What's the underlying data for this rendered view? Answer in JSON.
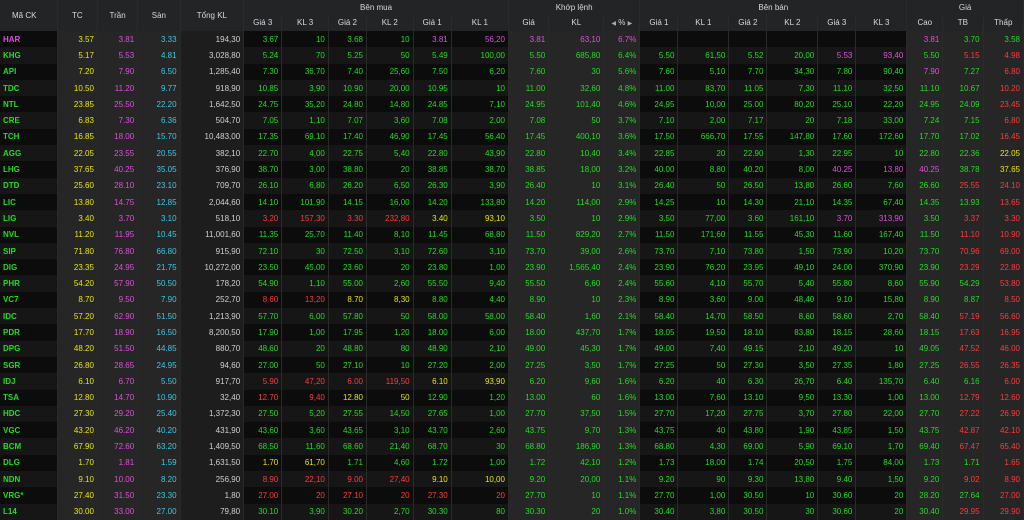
{
  "header": {
    "symbol": "Mã CK",
    "ref": "TC",
    "ceil": "Trần",
    "floor": "Sàn",
    "total_vol": "Tổng KL",
    "bid_group": "Bên mua",
    "match_group": "Khớp lệnh",
    "ask_group": "Bên bán",
    "price_group": "Giá",
    "bid_cols": [
      "Giá 3",
      "KL 3",
      "Giá 2",
      "KL 2",
      "Giá 1",
      "KL 1"
    ],
    "match_cols": [
      "Giá",
      "KL",
      "%"
    ],
    "ask_cols": [
      "Giá 1",
      "KL 1",
      "Giá 2",
      "KL 2",
      "Giá 3",
      "KL 3"
    ],
    "price_cols": [
      "Cao",
      "TB",
      "Thấp"
    ]
  },
  "colors": {
    "up": "#22dd22",
    "down": "#ff3a3a",
    "ref": "#e6e600",
    "ceil": "#e04ee0",
    "floor": "#38c8e8"
  },
  "rows": [
    {
      "sym": "HAR",
      "tc": "3.57",
      "tran": "3.81",
      "san": "3.33",
      "vol": "194,30",
      "b3": "3.67",
      "bk3": "10",
      "b2": "3.68",
      "bk2": "10",
      "b1": "3.81",
      "bk1": "56,20",
      "m": "3.81",
      "mk": "63,10",
      "pct": "6.7%",
      "a1": "",
      "ak1": "",
      "a2": "",
      "ak2": "",
      "a3": "",
      "ak3": "",
      "hi": "3.81",
      "avg": "3.70",
      "lo": "3.58"
    },
    {
      "sym": "KHG",
      "tc": "5.17",
      "tran": "5.53",
      "san": "4.81",
      "vol": "3,028,80",
      "b3": "5.24",
      "bk3": "70",
      "b2": "5.25",
      "bk2": "50",
      "b1": "5.49",
      "bk1": "100,00",
      "m": "5.50",
      "mk": "685,80",
      "pct": "6.4%",
      "a1": "5.50",
      "ak1": "61,50",
      "a2": "5.52",
      "ak2": "20,00",
      "a3": "5.53",
      "ak3": "93,40",
      "hi": "5.50",
      "avg": "5.15",
      "lo": "4.98"
    },
    {
      "sym": "API",
      "tc": "7.20",
      "tran": "7.90",
      "san": "6.50",
      "vol": "1,285,40",
      "b3": "7.30",
      "bk3": "36,70",
      "b2": "7.40",
      "bk2": "25,60",
      "b1": "7.50",
      "bk1": "6,20",
      "m": "7.60",
      "mk": "30",
      "pct": "5.6%",
      "a1": "7.60",
      "ak1": "5,10",
      "a2": "7.70",
      "ak2": "34,30",
      "a3": "7.80",
      "ak3": "90,40",
      "hi": "7.90",
      "avg": "7.27",
      "lo": "6.80"
    },
    {
      "sym": "TDC",
      "tc": "10.50",
      "tran": "11.20",
      "san": "9.77",
      "vol": "918,90",
      "b3": "10.85",
      "bk3": "3,90",
      "b2": "10.90",
      "bk2": "20,00",
      "b1": "10.95",
      "bk1": "10",
      "m": "11.00",
      "mk": "32,60",
      "pct": "4.8%",
      "a1": "11.00",
      "ak1": "83,70",
      "a2": "11.05",
      "ak2": "7,30",
      "a3": "11.10",
      "ak3": "32,50",
      "hi": "11.10",
      "avg": "10.67",
      "lo": "10.20"
    },
    {
      "sym": "NTL",
      "tc": "23.85",
      "tran": "25.50",
      "san": "22.20",
      "vol": "1,642,50",
      "b3": "24.75",
      "bk3": "35,20",
      "b2": "24.80",
      "bk2": "14,80",
      "b1": "24.85",
      "bk1": "7,10",
      "m": "24.95",
      "mk": "101,40",
      "pct": "4.6%",
      "a1": "24.95",
      "ak1": "10,00",
      "a2": "25.00",
      "ak2": "80,20",
      "a3": "25.10",
      "ak3": "22,20",
      "hi": "24.95",
      "avg": "24.09",
      "lo": "23.45"
    },
    {
      "sym": "CRE",
      "tc": "6.83",
      "tran": "7.30",
      "san": "6.36",
      "vol": "504,70",
      "b3": "7.05",
      "bk3": "1,10",
      "b2": "7.07",
      "bk2": "3,60",
      "b1": "7.08",
      "bk1": "2,00",
      "m": "7.08",
      "mk": "50",
      "pct": "3.7%",
      "a1": "7.10",
      "ak1": "2,00",
      "a2": "7.17",
      "ak2": "20",
      "a3": "7.18",
      "ak3": "33,00",
      "hi": "7.24",
      "avg": "7.15",
      "lo": "6.80"
    },
    {
      "sym": "TCH",
      "tc": "16.85",
      "tran": "18.00",
      "san": "15.70",
      "vol": "10,483,00",
      "b3": "17.35",
      "bk3": "69,10",
      "b2": "17.40",
      "bk2": "46,90",
      "b1": "17.45",
      "bk1": "56,40",
      "m": "17.45",
      "mk": "400,10",
      "pct": "3.6%",
      "a1": "17.50",
      "ak1": "666,70",
      "a2": "17.55",
      "ak2": "147,80",
      "a3": "17.60",
      "ak3": "172,60",
      "hi": "17.70",
      "avg": "17.02",
      "lo": "16.45"
    },
    {
      "sym": "AGG",
      "tc": "22.05",
      "tran": "23.55",
      "san": "20.55",
      "vol": "382,10",
      "b3": "22.70",
      "bk3": "4,00",
      "b2": "22.75",
      "bk2": "5,40",
      "b1": "22.80",
      "bk1": "43,90",
      "m": "22.80",
      "mk": "10,40",
      "pct": "3.4%",
      "a1": "22.85",
      "ak1": "20",
      "a2": "22.90",
      "ak2": "1,30",
      "a3": "22.95",
      "ak3": "10",
      "hi": "22.80",
      "avg": "22.36",
      "lo": "22.05"
    },
    {
      "sym": "LHG",
      "tc": "37.65",
      "tran": "40.25",
      "san": "35.05",
      "vol": "376,90",
      "b3": "38.70",
      "bk3": "3,00",
      "b2": "38.80",
      "bk2": "20",
      "b1": "38.85",
      "bk1": "38,70",
      "m": "38.85",
      "mk": "18,00",
      "pct": "3.2%",
      "a1": "40.00",
      "ak1": "8,80",
      "a2": "40.20",
      "ak2": "8,00",
      "a3": "40.25",
      "ak3": "13,80",
      "hi": "40.25",
      "avg": "38.78",
      "lo": "37.65"
    },
    {
      "sym": "DTD",
      "tc": "25.60",
      "tran": "28.10",
      "san": "23.10",
      "vol": "709,70",
      "b3": "26.10",
      "bk3": "6,80",
      "b2": "26.20",
      "bk2": "6,50",
      "b1": "26.30",
      "bk1": "3,90",
      "m": "26.40",
      "mk": "10",
      "pct": "3.1%",
      "a1": "26.40",
      "ak1": "50",
      "a2": "26.50",
      "ak2": "13,80",
      "a3": "26.60",
      "ak3": "7,60",
      "hi": "26.60",
      "avg": "25.55",
      "lo": "24.10"
    },
    {
      "sym": "LIC",
      "tc": "13.80",
      "tran": "14.75",
      "san": "12.85",
      "vol": "2,044,60",
      "b3": "14.10",
      "bk3": "101,90",
      "b2": "14.15",
      "bk2": "16,00",
      "b1": "14.20",
      "bk1": "133,80",
      "m": "14.20",
      "mk": "114,00",
      "pct": "2.9%",
      "a1": "14.25",
      "ak1": "10",
      "a2": "14.30",
      "ak2": "21,10",
      "a3": "14.35",
      "ak3": "67,40",
      "hi": "14.35",
      "avg": "13.93",
      "lo": "13.65"
    },
    {
      "sym": "LIG",
      "tc": "3.40",
      "tran": "3.70",
      "san": "3.10",
      "vol": "518,10",
      "b3": "3.20",
      "bk3": "157,30",
      "b2": "3.30",
      "bk2": "232,80",
      "b1": "3.40",
      "bk1": "93,10",
      "m": "3.50",
      "mk": "10",
      "pct": "2.9%",
      "a1": "3.50",
      "ak1": "77,00",
      "a2": "3.60",
      "ak2": "161,10",
      "a3": "3.70",
      "ak3": "313,90",
      "hi": "3.50",
      "avg": "3.37",
      "lo": "3.30"
    },
    {
      "sym": "NVL",
      "tc": "11.20",
      "tran": "11.95",
      "san": "10.45",
      "vol": "11,001,60",
      "b3": "11.35",
      "bk3": "25,70",
      "b2": "11.40",
      "bk2": "8,10",
      "b1": "11.45",
      "bk1": "68,80",
      "m": "11.50",
      "mk": "829,20",
      "pct": "2.7%",
      "a1": "11.50",
      "ak1": "171,60",
      "a2": "11.55",
      "ak2": "45,30",
      "a3": "11.60",
      "ak3": "167,40",
      "hi": "11.50",
      "avg": "11.10",
      "lo": "10.90"
    },
    {
      "sym": "SIP",
      "tc": "71.80",
      "tran": "76.80",
      "san": "66.80",
      "vol": "915,90",
      "b3": "72.10",
      "bk3": "30",
      "b2": "72.50",
      "bk2": "3,10",
      "b1": "72.60",
      "bk1": "3,10",
      "m": "73.70",
      "mk": "39,00",
      "pct": "2.6%",
      "a1": "73.70",
      "ak1": "7,10",
      "a2": "73.80",
      "ak2": "1,50",
      "a3": "73.90",
      "ak3": "10,20",
      "hi": "73.70",
      "avg": "70.96",
      "lo": "69.00"
    },
    {
      "sym": "DIG",
      "tc": "23.35",
      "tran": "24.95",
      "san": "21.75",
      "vol": "10,272,00",
      "b3": "23.50",
      "bk3": "45,00",
      "b2": "23.60",
      "bk2": "20",
      "b1": "23.80",
      "bk1": "1,00",
      "m": "23.90",
      "mk": "1,565,40",
      "pct": "2.4%",
      "a1": "23.90",
      "ak1": "76,20",
      "a2": "23.95",
      "ak2": "49,10",
      "a3": "24.00",
      "ak3": "370,90",
      "hi": "23.90",
      "avg": "23.29",
      "lo": "22.80"
    },
    {
      "sym": "PHR",
      "tc": "54.20",
      "tran": "57.90",
      "san": "50.50",
      "vol": "178,20",
      "b3": "54.90",
      "bk3": "1,10",
      "b2": "55.00",
      "bk2": "2,60",
      "b1": "55.50",
      "bk1": "9,40",
      "m": "55.50",
      "mk": "6,60",
      "pct": "2.4%",
      "a1": "55.60",
      "ak1": "4,10",
      "a2": "55.70",
      "ak2": "5,40",
      "a3": "55.80",
      "ak3": "8,60",
      "hi": "55.90",
      "avg": "54.29",
      "lo": "53.80"
    },
    {
      "sym": "VC7",
      "tc": "8.70",
      "tran": "9.50",
      "san": "7.90",
      "vol": "252,70",
      "b3": "8.60",
      "bk3": "13,20",
      "b2": "8.70",
      "bk2": "8,30",
      "b1": "8.80",
      "bk1": "4,40",
      "m": "8.90",
      "mk": "10",
      "pct": "2.3%",
      "a1": "8.90",
      "ak1": "3,60",
      "a2": "9.00",
      "ak2": "48,40",
      "a3": "9.10",
      "ak3": "15,80",
      "hi": "8.90",
      "avg": "8.87",
      "lo": "8.50"
    },
    {
      "sym": "IDC",
      "tc": "57.20",
      "tran": "62.90",
      "san": "51.50",
      "vol": "1,213,90",
      "b3": "57.70",
      "bk3": "6,00",
      "b2": "57.80",
      "bk2": "50",
      "b1": "58.00",
      "bk1": "58,00",
      "m": "58.40",
      "mk": "1,60",
      "pct": "2.1%",
      "a1": "58.40",
      "ak1": "14,70",
      "a2": "58.50",
      "ak2": "8,60",
      "a3": "58.60",
      "ak3": "2,70",
      "hi": "58.40",
      "avg": "57.19",
      "lo": "56.60"
    },
    {
      "sym": "PDR",
      "tc": "17.70",
      "tran": "18.90",
      "san": "16.50",
      "vol": "8,200,50",
      "b3": "17.90",
      "bk3": "1,00",
      "b2": "17.95",
      "bk2": "1,20",
      "b1": "18.00",
      "bk1": "6,00",
      "m": "18.00",
      "mk": "437,70",
      "pct": "1.7%",
      "a1": "18.05",
      "ak1": "19,50",
      "a2": "18.10",
      "ak2": "83,80",
      "a3": "18.15",
      "ak3": "28,60",
      "hi": "18.15",
      "avg": "17.63",
      "lo": "16.95"
    },
    {
      "sym": "DPG",
      "tc": "48.20",
      "tran": "51.50",
      "san": "44.85",
      "vol": "880,70",
      "b3": "48.60",
      "bk3": "20",
      "b2": "48.80",
      "bk2": "80",
      "b1": "48.90",
      "bk1": "2,10",
      "m": "49.00",
      "mk": "45,30",
      "pct": "1.7%",
      "a1": "49.00",
      "ak1": "7,40",
      "a2": "49.15",
      "ak2": "2,10",
      "a3": "49.20",
      "ak3": "10",
      "hi": "49.05",
      "avg": "47.52",
      "lo": "46.00"
    },
    {
      "sym": "SGR",
      "tc": "26.80",
      "tran": "28.65",
      "san": "24.95",
      "vol": "94,60",
      "b3": "27.00",
      "bk3": "50",
      "b2": "27.10",
      "bk2": "10",
      "b1": "27.20",
      "bk1": "2,00",
      "m": "27.25",
      "mk": "3,50",
      "pct": "1.7%",
      "a1": "27.25",
      "ak1": "50",
      "a2": "27.30",
      "ak2": "3,50",
      "a3": "27.35",
      "ak3": "1,80",
      "hi": "27.25",
      "avg": "26.55",
      "lo": "26.35"
    },
    {
      "sym": "IDJ",
      "tc": "6.10",
      "tran": "6.70",
      "san": "5.50",
      "vol": "917,70",
      "b3": "5.90",
      "bk3": "47,20",
      "b2": "6.00",
      "bk2": "119,50",
      "b1": "6.10",
      "bk1": "93,90",
      "m": "6.20",
      "mk": "9,60",
      "pct": "1.6%",
      "a1": "6.20",
      "ak1": "40",
      "a2": "6.30",
      "ak2": "26,70",
      "a3": "6.40",
      "ak3": "135,70",
      "hi": "6.40",
      "avg": "6.16",
      "lo": "6.00"
    },
    {
      "sym": "TSA",
      "tc": "12.80",
      "tran": "14.70",
      "san": "10.90",
      "vol": "32,40",
      "b3": "12.70",
      "bk3": "9,40",
      "b2": "12.80",
      "bk2": "50",
      "b1": "12.90",
      "bk1": "1,20",
      "m": "13.00",
      "mk": "60",
      "pct": "1.6%",
      "a1": "13.00",
      "ak1": "7,60",
      "a2": "13.10",
      "ak2": "9,50",
      "a3": "13.30",
      "ak3": "1,00",
      "hi": "13.00",
      "avg": "12.79",
      "lo": "12.60"
    },
    {
      "sym": "HDC",
      "tc": "27.30",
      "tran": "29.20",
      "san": "25.40",
      "vol": "1,372,30",
      "b3": "27.50",
      "bk3": "5,20",
      "b2": "27.55",
      "bk2": "14,50",
      "b1": "27.65",
      "bk1": "1,00",
      "m": "27.70",
      "mk": "37,50",
      "pct": "1.5%",
      "a1": "27.70",
      "ak1": "17,20",
      "a2": "27.75",
      "ak2": "3,70",
      "a3": "27.80",
      "ak3": "22,00",
      "hi": "27.70",
      "avg": "27.22",
      "lo": "26.90"
    },
    {
      "sym": "VGC",
      "tc": "43.20",
      "tran": "46.20",
      "san": "40.20",
      "vol": "431,90",
      "b3": "43.60",
      "bk3": "3,60",
      "b2": "43.65",
      "bk2": "3,10",
      "b1": "43.70",
      "bk1": "2,60",
      "m": "43.75",
      "mk": "9,70",
      "pct": "1.3%",
      "a1": "43.75",
      "ak1": "40",
      "a2": "43.80",
      "ak2": "1,90",
      "a3": "43.85",
      "ak3": "1,50",
      "hi": "43.75",
      "avg": "42.87",
      "lo": "42.10"
    },
    {
      "sym": "BCM",
      "tc": "67.90",
      "tran": "72.60",
      "san": "63.20",
      "vol": "1,409,50",
      "b3": "68.50",
      "bk3": "11,60",
      "b2": "68.60",
      "bk2": "21,40",
      "b1": "68.70",
      "bk1": "30",
      "m": "68.80",
      "mk": "186,90",
      "pct": "1.3%",
      "a1": "68.80",
      "ak1": "4,30",
      "a2": "69.00",
      "ak2": "5,90",
      "a3": "69.10",
      "ak3": "1,70",
      "hi": "69.40",
      "avg": "67.47",
      "lo": "65.40"
    },
    {
      "sym": "DLG",
      "tc": "1.70",
      "tran": "1.81",
      "san": "1.59",
      "vol": "1,631,50",
      "b3": "1.70",
      "bk3": "61,70",
      "b2": "1.71",
      "bk2": "4,60",
      "b1": "1.72",
      "bk1": "1,00",
      "m": "1.72",
      "mk": "42,10",
      "pct": "1.2%",
      "a1": "1.73",
      "ak1": "18,00",
      "a2": "1.74",
      "ak2": "20,50",
      "a3": "1.75",
      "ak3": "84,00",
      "hi": "1.73",
      "avg": "1.71",
      "lo": "1.65"
    },
    {
      "sym": "NDN",
      "tc": "9.10",
      "tran": "10.00",
      "san": "8.20",
      "vol": "256,90",
      "b3": "8.90",
      "bk3": "22,10",
      "b2": "9.00",
      "bk2": "27,40",
      "b1": "9.10",
      "bk1": "10,00",
      "m": "9.20",
      "mk": "20,00",
      "pct": "1.1%",
      "a1": "9.20",
      "ak1": "90",
      "a2": "9.30",
      "ak2": "13,80",
      "a3": "9.40",
      "ak3": "1,50",
      "hi": "9.20",
      "avg": "9.02",
      "lo": "8.90"
    },
    {
      "sym": "VRG*",
      "tc": "27.40",
      "tran": "31.50",
      "san": "23.30",
      "vol": "1,80",
      "b3": "27.00",
      "bk3": "20",
      "b2": "27.10",
      "bk2": "20",
      "b1": "27.30",
      "bk1": "20",
      "m": "27.70",
      "mk": "10",
      "pct": "1.1%",
      "a1": "27.70",
      "ak1": "1,00",
      "a2": "30.50",
      "ak2": "10",
      "a3": "30.60",
      "ak3": "20",
      "hi": "28.20",
      "avg": "27.64",
      "lo": "27.00"
    },
    {
      "sym": "L14",
      "tc": "30.00",
      "tran": "33.00",
      "san": "27.00",
      "vol": "79,80",
      "b3": "30.10",
      "bk3": "3,90",
      "b2": "30.20",
      "bk2": "2,70",
      "b1": "30.30",
      "bk1": "80",
      "m": "30.30",
      "mk": "20",
      "pct": "1.0%",
      "a1": "30.40",
      "ak1": "3,80",
      "a2": "30.50",
      "ak2": "30",
      "a3": "30.60",
      "ak3": "20",
      "hi": "30.40",
      "avg": "29.95",
      "lo": "29.90"
    }
  ]
}
